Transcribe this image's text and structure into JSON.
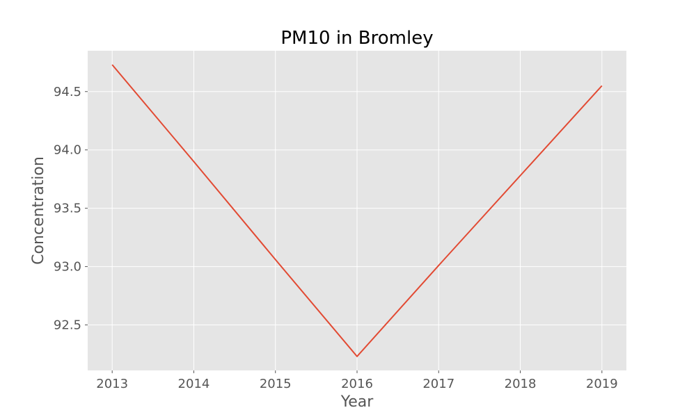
{
  "chart_data": {
    "type": "line",
    "title": "PM10 in Bromley",
    "xlabel": "Year",
    "ylabel": "Concentration",
    "x": [
      2013,
      2014,
      2015,
      2016,
      2017,
      2018,
      2019
    ],
    "series": [
      {
        "values": [
          94.73,
          93.9,
          93.06,
          92.23,
          93.01,
          93.78,
          94.55
        ],
        "color": "#E24A33"
      }
    ],
    "xlim": [
      2012.7,
      2019.3
    ],
    "ylim": [
      92.11,
      94.85
    ],
    "x_ticks": [
      2013,
      2014,
      2015,
      2016,
      2017,
      2018,
      2019
    ],
    "y_ticks": [
      92.5,
      93.0,
      93.5,
      94.0,
      94.5
    ],
    "y_tick_labels": [
      "92.5",
      "93.0",
      "93.5",
      "94.0",
      "94.5"
    ],
    "grid": true,
    "legend": "none",
    "style": {
      "plot_bg": "#E5E5E5",
      "grid_color": "#FFFFFF",
      "text_color": "#555555"
    }
  }
}
